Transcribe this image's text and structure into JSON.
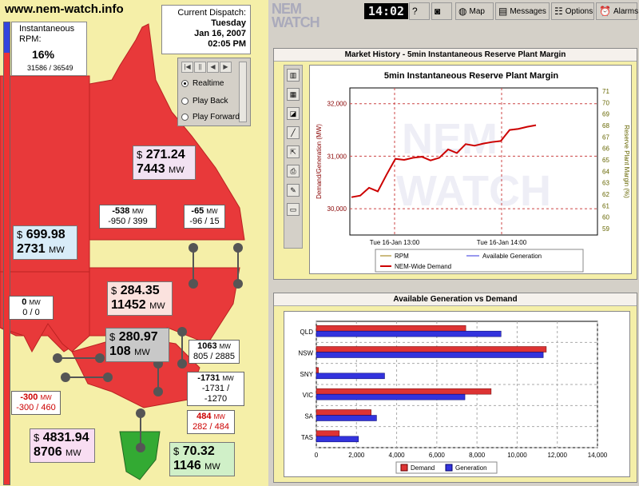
{
  "site": "www.nem-watch.info",
  "rpm": {
    "label": "Instantaneous RPM:",
    "percent": "16%",
    "detail": "31586 / 36549",
    "fill": 0.16
  },
  "dispatch": {
    "label": "Current Dispatch:",
    "day": "Tuesday",
    "date": "Jan 16, 2007",
    "time": "02:05 PM"
  },
  "playback": {
    "buttons": [
      "|◀",
      "||",
      "◀",
      "▶"
    ],
    "modes": [
      "Realtime",
      "Play Back",
      "Play Forward"
    ],
    "selected": "Realtime"
  },
  "regions": {
    "qld": {
      "price": "271.24",
      "mw": "7443"
    },
    "sa": {
      "price": "699.98",
      "mw": "2731"
    },
    "nsw": {
      "price": "284.35",
      "mw": "11452"
    },
    "sny": {
      "price": "280.97",
      "mw": "108"
    },
    "vic": {
      "price": "4831.94",
      "mw": "8706"
    },
    "tas": {
      "price": "70.32",
      "mw": "1146"
    }
  },
  "currency": "$",
  "mw_unit": "MW",
  "interconnectors": {
    "ic1": {
      "value": "-538",
      "range": "-950 / 399"
    },
    "ic2": {
      "value": "-65",
      "range": "-96 / 15"
    },
    "ic3": {
      "value": "0",
      "range": "0 / 0"
    },
    "ic4": {
      "value": "1063",
      "range": "805 / 2885"
    },
    "ic5": {
      "value": "-1731",
      "range": "-1731 / -1270"
    },
    "ic6": {
      "value": "-300",
      "range": "-300 / 460"
    },
    "ic7": {
      "value": "484",
      "range": "282 / 484"
    }
  },
  "ic_unit": "MW",
  "logo": [
    "NEM",
    "WATCH"
  ],
  "clock": "14:02",
  "toolbar": {
    "map": "Map",
    "messages": "Messages",
    "options": "Options",
    "alarms": "Alarms"
  },
  "panel1": {
    "title": "Market History - 5min Instantaneous Reserve Plant Margin"
  },
  "panel2": {
    "title": "Available Generation vs Demand"
  },
  "colors": {
    "demand": "#dd3333",
    "generation": "#3333dd",
    "map_red": "#e8393a",
    "rpm_line": "#cc0000"
  },
  "chart_data": [
    {
      "type": "line",
      "title": "5min Instantaneous Reserve Plant Margin",
      "ylabel": "Demand/Generation (MW)",
      "y2label": "Reserve Plant Margin (%)",
      "x_ticks": [
        "Tue 16-Jan 13:00",
        "Tue 16-Jan 14:00"
      ],
      "y_ticks": [
        "32,000",
        "31,000",
        "30,000"
      ],
      "y2_ticks": [
        "71",
        "70",
        "69",
        "68",
        "67",
        "66",
        "65",
        "64",
        "63",
        "62",
        "61",
        "60",
        "59"
      ],
      "ylim": [
        29500,
        32300
      ],
      "series": [
        {
          "name": "NEM-Wide Demand",
          "x": [
            "12:20",
            "12:25",
            "12:30",
            "12:35",
            "12:40",
            "12:45",
            "12:50",
            "12:55",
            "13:00",
            "13:05",
            "13:10",
            "13:15",
            "13:20",
            "13:25",
            "13:30",
            "13:35",
            "13:40",
            "13:45",
            "13:50",
            "13:55",
            "14:00",
            "14:05"
          ],
          "values": [
            30220,
            30250,
            30400,
            30330,
            30650,
            30950,
            30930,
            30970,
            30990,
            30920,
            30970,
            31130,
            31060,
            31230,
            31200,
            31240,
            31270,
            31290,
            31500,
            31520,
            31560,
            31590
          ]
        }
      ],
      "legend": [
        "RPM",
        "Available Generation",
        "NEM-Wide Demand"
      ]
    },
    {
      "type": "bar",
      "orientation": "horizontal",
      "categories": [
        "QLD",
        "NSW",
        "SNY",
        "VIC",
        "SA",
        "TAS"
      ],
      "series": [
        {
          "name": "Demand",
          "values": [
            7443,
            11452,
            108,
            8706,
            2731,
            1146
          ]
        },
        {
          "name": "Generation",
          "values": [
            9200,
            11300,
            3400,
            7400,
            3000,
            2100
          ]
        }
      ],
      "x_ticks": [
        "0",
        "2,000",
        "4,000",
        "6,000",
        "8,000",
        "10,000",
        "12,000",
        "14,000"
      ],
      "xlim": [
        0,
        14000
      ]
    }
  ]
}
